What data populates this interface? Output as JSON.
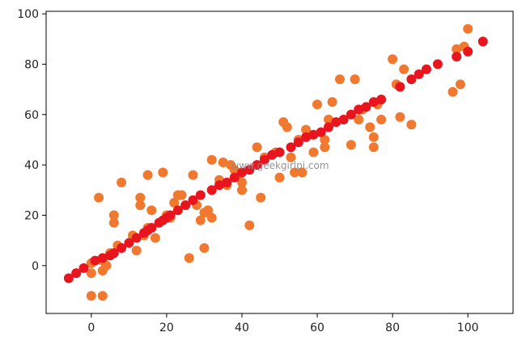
{
  "watermark": "www.geekgirlpi.com",
  "chart_data": {
    "type": "scatter",
    "title": "",
    "xlabel": "",
    "ylabel": "",
    "xlim": [
      -12,
      112
    ],
    "ylim": [
      -19,
      101
    ],
    "x_ticks": [
      0,
      20,
      40,
      60,
      80,
      100
    ],
    "y_ticks": [
      0,
      20,
      40,
      60,
      80,
      100
    ],
    "grid": false,
    "series": [
      {
        "color": "#F0782F",
        "points": [
          [
            0,
            -12
          ],
          [
            3,
            -12
          ],
          [
            0,
            -3
          ],
          [
            3,
            -2
          ],
          [
            3,
            2
          ],
          [
            0,
            1
          ],
          [
            2,
            27
          ],
          [
            4,
            0
          ],
          [
            5,
            5
          ],
          [
            6,
            17
          ],
          [
            6,
            20
          ],
          [
            7,
            8
          ],
          [
            8,
            33
          ],
          [
            11,
            12
          ],
          [
            12,
            6
          ],
          [
            13,
            27
          ],
          [
            13,
            24
          ],
          [
            14,
            12
          ],
          [
            15,
            15
          ],
          [
            15,
            36
          ],
          [
            16,
            22
          ],
          [
            17,
            11
          ],
          [
            19,
            37
          ],
          [
            20,
            20
          ],
          [
            21,
            19
          ],
          [
            22,
            25
          ],
          [
            23,
            28
          ],
          [
            24,
            28
          ],
          [
            26,
            3
          ],
          [
            27,
            36
          ],
          [
            28,
            24
          ],
          [
            29,
            18
          ],
          [
            30,
            7
          ],
          [
            30,
            21
          ],
          [
            31,
            22
          ],
          [
            32,
            42
          ],
          [
            32,
            19
          ],
          [
            34,
            34
          ],
          [
            35,
            41
          ],
          [
            36,
            32
          ],
          [
            37,
            40
          ],
          [
            38,
            38
          ],
          [
            39,
            36
          ],
          [
            40,
            33
          ],
          [
            40,
            30
          ],
          [
            42,
            16
          ],
          [
            44,
            47
          ],
          [
            45,
            27
          ],
          [
            46,
            43
          ],
          [
            49,
            45
          ],
          [
            50,
            35
          ],
          [
            51,
            57
          ],
          [
            52,
            55
          ],
          [
            53,
            43
          ],
          [
            54,
            37
          ],
          [
            55,
            50
          ],
          [
            56,
            37
          ],
          [
            57,
            54
          ],
          [
            58,
            52
          ],
          [
            59,
            45
          ],
          [
            60,
            64
          ],
          [
            62,
            47
          ],
          [
            62,
            50
          ],
          [
            63,
            58
          ],
          [
            64,
            65
          ],
          [
            66,
            74
          ],
          [
            69,
            48
          ],
          [
            70,
            74
          ],
          [
            71,
            58
          ],
          [
            72,
            62
          ],
          [
            74,
            55
          ],
          [
            75,
            47
          ],
          [
            75,
            51
          ],
          [
            76,
            64
          ],
          [
            77,
            58
          ],
          [
            80,
            82
          ],
          [
            81,
            72
          ],
          [
            82,
            59
          ],
          [
            83,
            78
          ],
          [
            85,
            56
          ],
          [
            96,
            69
          ],
          [
            97,
            86
          ],
          [
            98,
            72
          ],
          [
            99,
            87
          ],
          [
            100,
            94
          ]
        ]
      },
      {
        "color": "#E8141E",
        "points": [
          [
            -6,
            -5
          ],
          [
            -4,
            -3
          ],
          [
            -2,
            -1
          ],
          [
            1,
            2
          ],
          [
            3,
            3
          ],
          [
            5,
            4
          ],
          [
            6,
            5
          ],
          [
            8,
            7
          ],
          [
            10,
            9
          ],
          [
            12,
            11
          ],
          [
            14,
            13
          ],
          [
            15,
            14
          ],
          [
            16,
            15
          ],
          [
            18,
            17
          ],
          [
            19,
            18
          ],
          [
            20,
            19
          ],
          [
            21,
            20
          ],
          [
            23,
            22
          ],
          [
            25,
            24
          ],
          [
            27,
            26
          ],
          [
            29,
            28
          ],
          [
            32,
            30
          ],
          [
            34,
            32
          ],
          [
            36,
            33
          ],
          [
            38,
            35
          ],
          [
            40,
            37
          ],
          [
            42,
            38
          ],
          [
            44,
            40
          ],
          [
            46,
            42
          ],
          [
            48,
            44
          ],
          [
            50,
            45
          ],
          [
            53,
            47
          ],
          [
            55,
            49
          ],
          [
            57,
            51
          ],
          [
            59,
            52
          ],
          [
            61,
            53
          ],
          [
            63,
            55
          ],
          [
            65,
            57
          ],
          [
            67,
            58
          ],
          [
            69,
            60
          ],
          [
            71,
            62
          ],
          [
            73,
            63
          ],
          [
            75,
            65
          ],
          [
            77,
            66
          ],
          [
            82,
            71
          ],
          [
            85,
            74
          ],
          [
            87,
            76
          ],
          [
            89,
            78
          ],
          [
            92,
            80
          ],
          [
            97,
            83
          ],
          [
            100,
            85
          ],
          [
            104,
            89
          ]
        ]
      }
    ]
  }
}
